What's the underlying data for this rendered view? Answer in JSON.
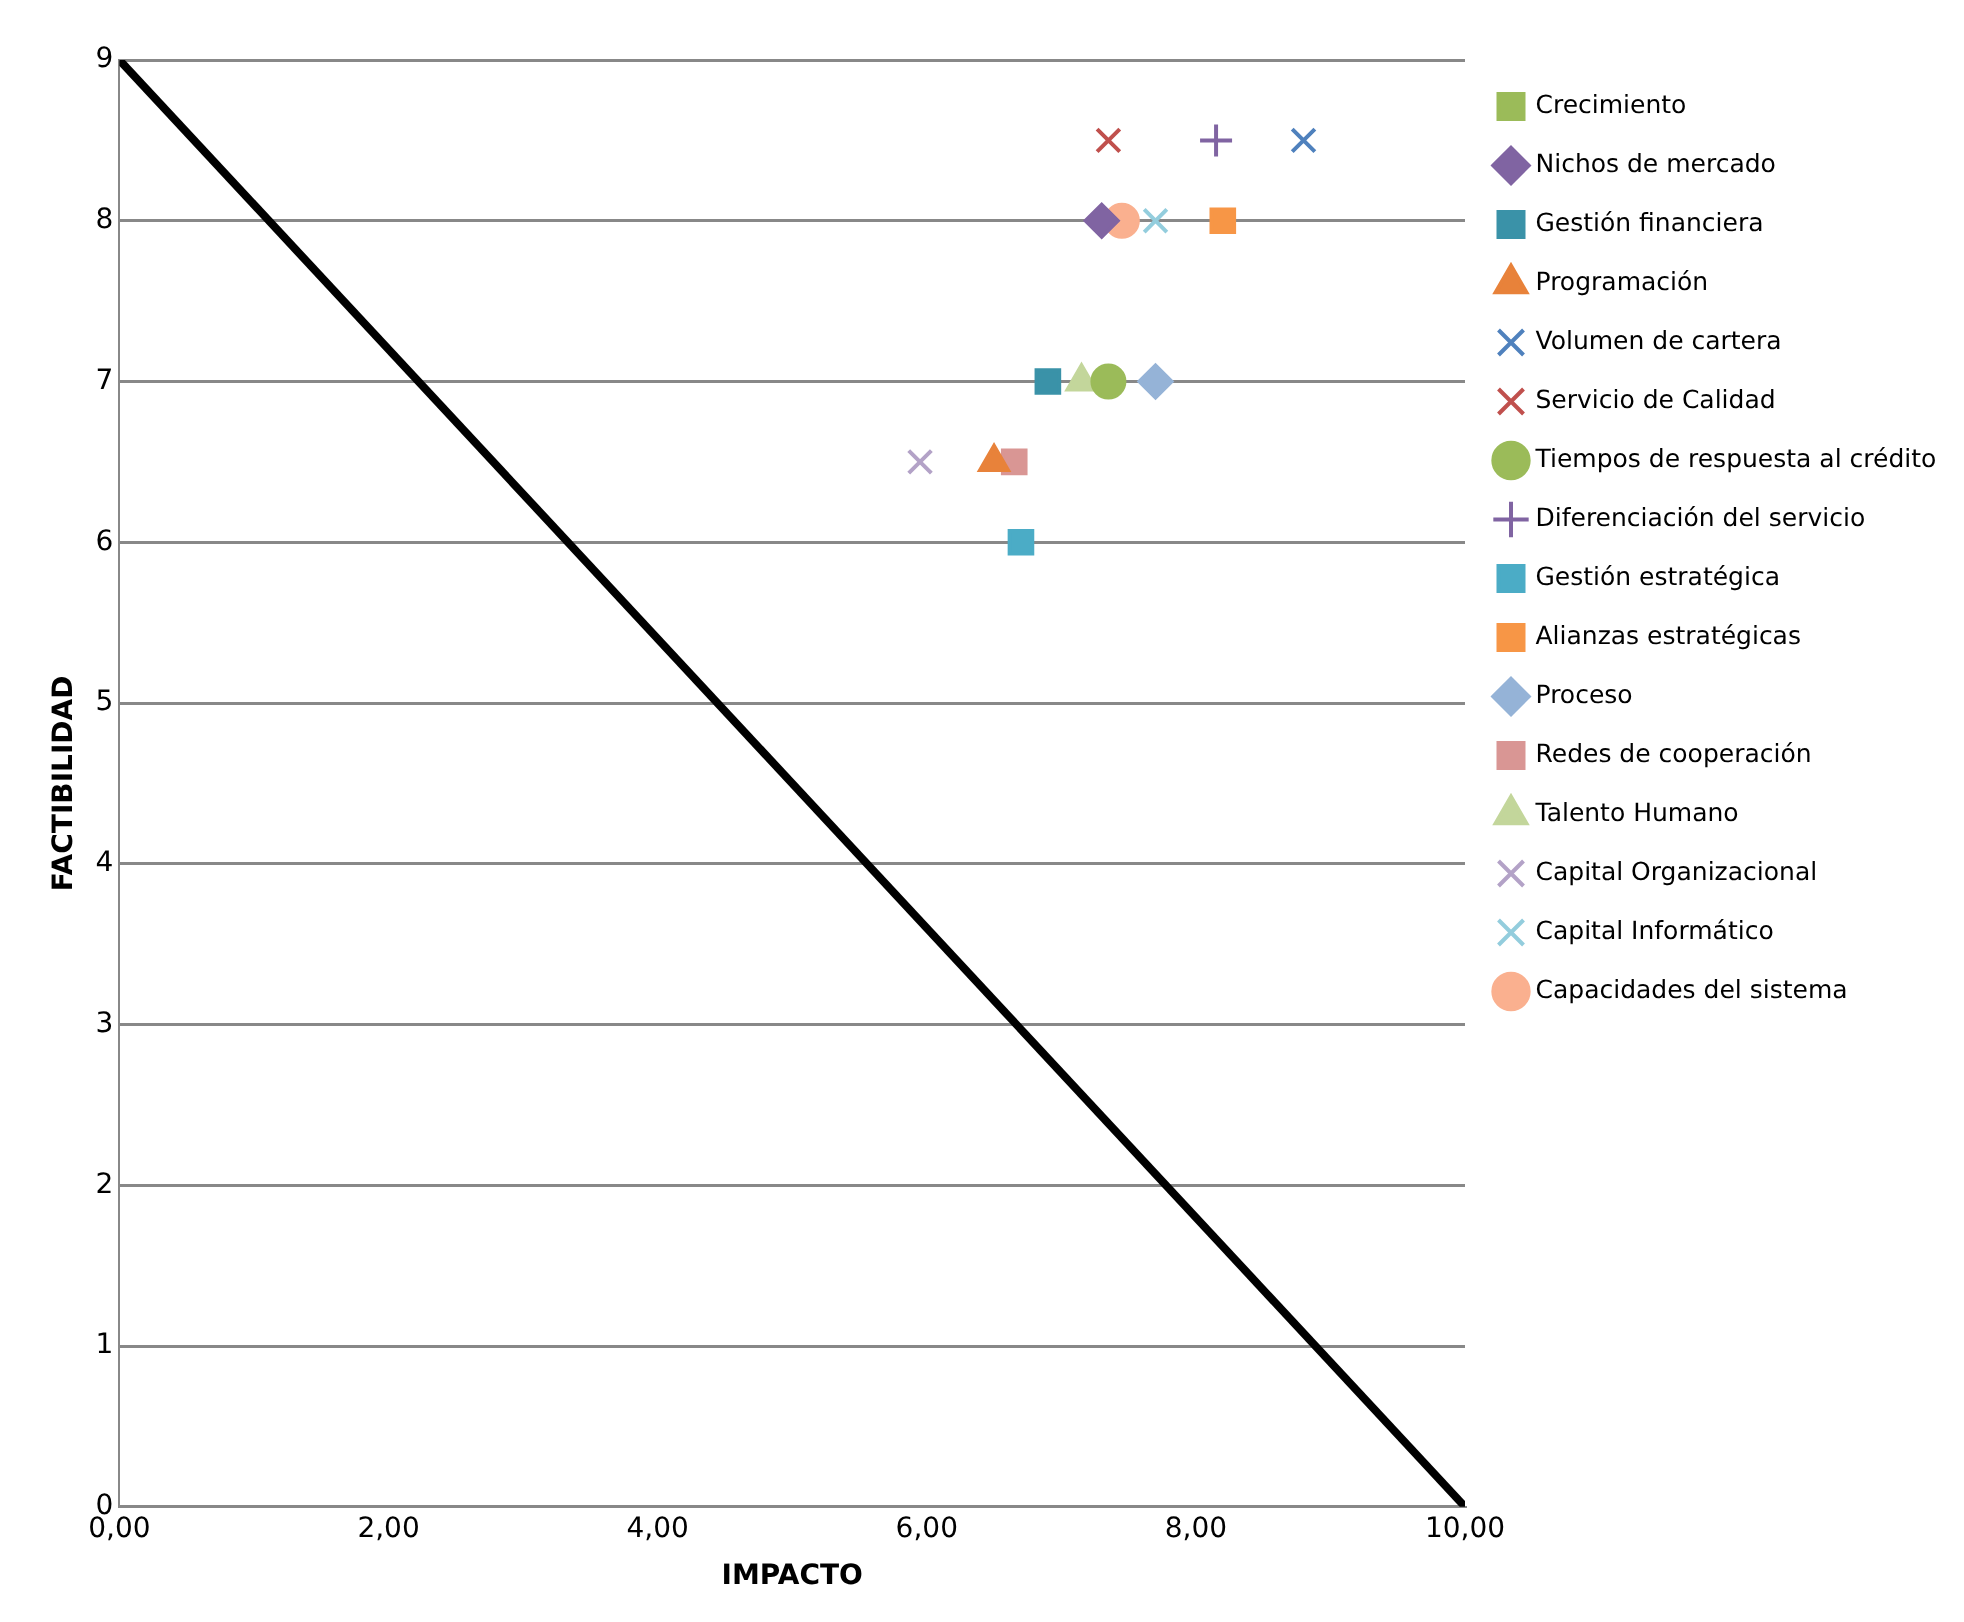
{
  "chart_data": {
    "type": "scatter",
    "xlabel": "IMPACTO",
    "ylabel": "FACTIBILIDAD",
    "xlim": [
      0,
      10
    ],
    "ylim": [
      0,
      9
    ],
    "xticks": [
      {
        "value": 0,
        "label": "0,00"
      },
      {
        "value": 2,
        "label": "2,00"
      },
      {
        "value": 4,
        "label": "4,00"
      },
      {
        "value": 6,
        "label": "6,00"
      },
      {
        "value": 8,
        "label": "8,00"
      },
      {
        "value": 10,
        "label": "10,00"
      }
    ],
    "yticks": [
      0,
      1,
      2,
      3,
      4,
      5,
      6,
      7,
      8,
      9
    ],
    "grid": "y",
    "legend": "right",
    "series": [
      {
        "type": "line",
        "color": "#000000",
        "marker": "none",
        "line_style": "solid",
        "x": [
          0,
          10
        ],
        "values": [
          9,
          0
        ]
      },
      {
        "name": "Crecimiento",
        "color": "#9bbb59",
        "marker": "square",
        "x": [
          null
        ],
        "values": [
          null
        ]
      },
      {
        "name": "Nichos de mercado",
        "color": "#8064a2",
        "marker": "diamond",
        "x": [
          7.3
        ],
        "values": [
          8
        ]
      },
      {
        "name": "Gestión financiera",
        "color": "#3a92a8",
        "marker": "square",
        "x": [
          6.9
        ],
        "values": [
          7
        ]
      },
      {
        "name": "Programación",
        "color": "#e8823a",
        "marker": "triangle",
        "x": [
          6.5
        ],
        "values": [
          6.5
        ]
      },
      {
        "name": "Volumen de cartera",
        "color": "#4f81bd",
        "marker": "cross",
        "x": [
          8.8
        ],
        "values": [
          8.5
        ]
      },
      {
        "name": "Servicio de Calidad",
        "color": "#c0504d",
        "marker": "cross",
        "x": [
          7.35
        ],
        "values": [
          8.5
        ]
      },
      {
        "name": "Tiempos de respuesta al crédito",
        "color": "#9bbb59",
        "marker": "circle",
        "x": [
          7.35
        ],
        "values": [
          7
        ]
      },
      {
        "name": "Diferenciación del servicio",
        "color": "#8064a2",
        "marker": "plus",
        "x": [
          8.15
        ],
        "values": [
          8.5
        ]
      },
      {
        "name": "Gestión estratégica",
        "color": "#4bacc6",
        "marker": "square",
        "x": [
          6.7
        ],
        "values": [
          6
        ]
      },
      {
        "name": "Alianzas estratégicas",
        "color": "#f79646",
        "marker": "square",
        "x": [
          8.2
        ],
        "values": [
          8
        ]
      },
      {
        "name": "Proceso",
        "color": "#95b3d7",
        "marker": "diamond",
        "x": [
          7.7
        ],
        "values": [
          7
        ]
      },
      {
        "name": "Redes de cooperación",
        "color": "#d99694",
        "marker": "square",
        "x": [
          6.65
        ],
        "values": [
          6.5
        ]
      },
      {
        "name": "Talento Humano",
        "color": "#c3d69b",
        "marker": "triangle",
        "x": [
          7.15
        ],
        "values": [
          7
        ]
      },
      {
        "name": "Capital Organizacional",
        "color": "#b3a2c7",
        "marker": "cross",
        "x": [
          5.95
        ],
        "values": [
          6.5
        ]
      },
      {
        "name": "Capital Informático",
        "color": "#93cddd",
        "marker": "cross",
        "x": [
          7.7
        ],
        "values": [
          8
        ]
      },
      {
        "name": "Capacidades del sistema",
        "color": "#fab08f",
        "marker": "circle",
        "x": [
          7.45
        ],
        "values": [
          8
        ]
      }
    ]
  }
}
